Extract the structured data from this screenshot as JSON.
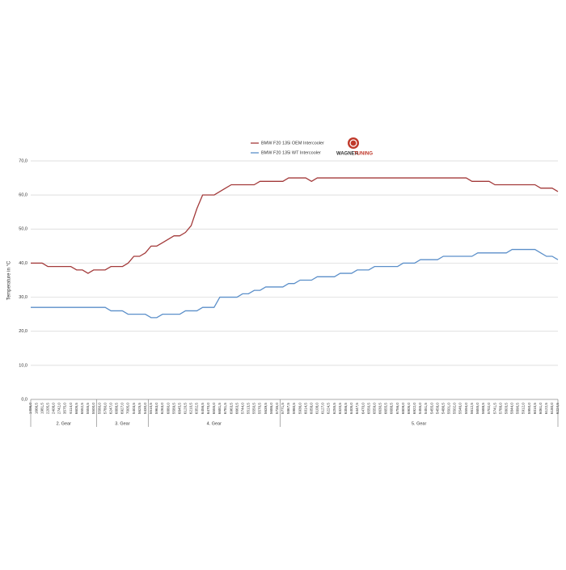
{
  "chart_data": {
    "type": "line",
    "y_label": "Temperature in °C",
    "ylim": [
      0,
      70
    ],
    "yticks": [
      {
        "value": 0,
        "label": "0,0"
      },
      {
        "value": 10,
        "label": "10,0"
      },
      {
        "value": 20,
        "label": "20,0"
      },
      {
        "value": 30,
        "label": "30,0"
      },
      {
        "value": 40,
        "label": "40,0"
      },
      {
        "value": 50,
        "label": "50,0"
      },
      {
        "value": 60,
        "label": "60,0"
      },
      {
        "value": 70,
        "label": "70,0"
      }
    ],
    "grid": true,
    "category_groups": [
      {
        "label": "2. Gear",
        "categories": [
          "1496,0",
          "1666,5",
          "1981,5",
          "2205,5",
          "2408,0",
          "2742,0",
          "3575,0",
          "6114,0",
          "6605,5",
          "6552,5",
          "5555,5",
          "5500,0"
        ]
      },
      {
        "label": "3. Gear",
        "categories": [
          "5580,0",
          "5780,0",
          "6247,0",
          "6888,5",
          "6927,0",
          "7005,0",
          "5403,5",
          "5625,5",
          "5430,0"
        ]
      },
      {
        "label": "4. Gear",
        "categories": [
          "5510,5",
          "5963,0",
          "6263,0",
          "6880,0",
          "5589,5",
          "6845,5",
          "6120,5",
          "6210,5",
          "6352,5",
          "6456,5",
          "6470,0",
          "6555,0",
          "6681,5",
          "6781,5",
          "6963,5",
          "6663,5",
          "5744,0",
          "5513,5",
          "5550,5",
          "5570,5",
          "5639,5",
          "5686,0",
          "5735,0"
        ]
      },
      {
        "label": "5. Gear",
        "categories": [
          "5771,5",
          "5867,5",
          "5980,5",
          "5936,0",
          "6014,5",
          "6058,0",
          "6108,0",
          "6127,0",
          "6224,5",
          "6255,5",
          "6320,5",
          "6356,5",
          "6405,0",
          "6447,5",
          "6470,0",
          "6550,5",
          "6559,0",
          "6630,5",
          "6655,5",
          "6688,5",
          "6756,0",
          "6809,0",
          "6905,0",
          "6922,0",
          "5455,0",
          "5451,5",
          "5455,0",
          "5458,0",
          "5486,5",
          "5501,0",
          "5502,0",
          "5546,0",
          "5594,0",
          "5612,5",
          "5655,0",
          "5688,5",
          "5702,0",
          "5741,5",
          "5788,0",
          "5803,5",
          "5844,0",
          "5890,5",
          "5912,0",
          "5950,0",
          "6010,5",
          "6061,0",
          "6122,5",
          "6180,0",
          "6224,5"
        ]
      }
    ],
    "series": [
      {
        "name": "BMW F20 135i OEM Intercooler",
        "color": "#a33a3a",
        "values": [
          40,
          40,
          40,
          39,
          39,
          39,
          39,
          39,
          38,
          38,
          37,
          38,
          38,
          38,
          39,
          39,
          39,
          40,
          42,
          42,
          43,
          45,
          45,
          46,
          47,
          48,
          48,
          49,
          51,
          56,
          60,
          60,
          60,
          61,
          62,
          63,
          63,
          63,
          63,
          63,
          64,
          64,
          64,
          64,
          64,
          65,
          65,
          65,
          65,
          64,
          65,
          65,
          65,
          65,
          65,
          65,
          65,
          65,
          65,
          65,
          65,
          65,
          65,
          65,
          65,
          65,
          65,
          65,
          65,
          65,
          65,
          65,
          65,
          65,
          65,
          65,
          65,
          64,
          64,
          64,
          64,
          63,
          63,
          63,
          63,
          63,
          63,
          63,
          63,
          62,
          62,
          62,
          61
        ]
      },
      {
        "name": "BMW F20 135i WT Intercooler",
        "color": "#5b8fc9",
        "values": [
          27,
          27,
          27,
          27,
          27,
          27,
          27,
          27,
          27,
          27,
          27,
          27,
          27,
          27,
          26,
          26,
          26,
          25,
          25,
          25,
          25,
          24,
          24,
          25,
          25,
          25,
          25,
          26,
          26,
          26,
          27,
          27,
          27,
          30,
          30,
          30,
          30,
          31,
          31,
          32,
          32,
          33,
          33,
          33,
          33,
          34,
          34,
          35,
          35,
          35,
          36,
          36,
          36,
          36,
          37,
          37,
          37,
          38,
          38,
          38,
          39,
          39,
          39,
          39,
          39,
          40,
          40,
          40,
          41,
          41,
          41,
          41,
          42,
          42,
          42,
          42,
          42,
          42,
          43,
          43,
          43,
          43,
          43,
          43,
          44,
          44,
          44,
          44,
          44,
          43,
          42,
          42,
          41
        ]
      }
    ]
  },
  "logo": {
    "word1": "WAGNER",
    "word2": "TUNING"
  }
}
